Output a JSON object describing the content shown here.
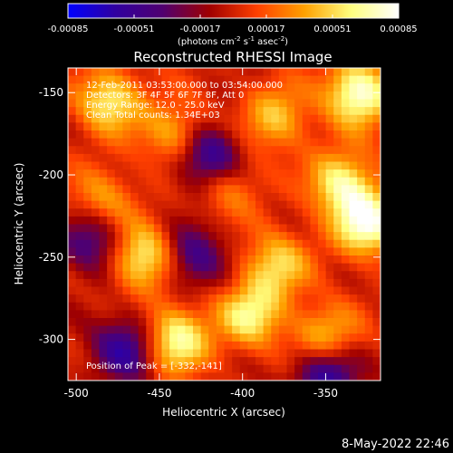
{
  "chart_data": {
    "type": "heatmap",
    "title": "Reconstructed RHESSI Image",
    "xlabel": "Heliocentric X (arcsec)",
    "ylabel": "Heliocentric Y (arcsec)",
    "xlim": [
      -505,
      -317
    ],
    "ylim": [
      -325,
      -135
    ],
    "x_ticks": [
      -500,
      -450,
      -400,
      -350
    ],
    "y_ticks": [
      -150,
      -200,
      -250,
      -300
    ],
    "colorbar": {
      "ticks": [
        "-0.00085",
        "-0.00051",
        "-0.00017",
        "0.00017",
        "0.00051",
        "0.00085"
      ],
      "range": [
        -0.00085,
        0.00085
      ],
      "label_parts": {
        "a": "(photons cm",
        "b": "-2",
        "c": " s",
        "d": "-1",
        "e": " asec",
        "f": "-2",
        "g": ")"
      },
      "stops": [
        "#0000ff",
        "#3000a0",
        "#500070",
        "#a00000",
        "#ff4000",
        "#ffa000",
        "#ffff80",
        "#ffffff"
      ]
    },
    "annotations": [
      "12-Feb-2011 03:53:00.000 to 03:54:00.000",
      "Detectors: 3F 4F 5F 6F 7F 8F, Att 0",
      "Energy Range: 12.0 - 25.0 keV",
      "Clean     Total counts: 1.34E+03"
    ],
    "peak_label": "Position of Peak = [-332,-141]",
    "peak": [
      -332,
      -141
    ],
    "bright_regions": [
      {
        "x": -330,
        "y": -150,
        "level": 0.95
      },
      {
        "x": -325,
        "y": -230,
        "level": 0.9
      },
      {
        "x": -340,
        "y": -205,
        "level": 0.75
      },
      {
        "x": -480,
        "y": -155,
        "level": 0.7
      },
      {
        "x": -460,
        "y": -250,
        "level": 0.8
      },
      {
        "x": -440,
        "y": -300,
        "level": 0.85
      },
      {
        "x": -395,
        "y": -285,
        "level": 0.7
      },
      {
        "x": -380,
        "y": -255,
        "level": 0.6
      },
      {
        "x": -350,
        "y": -300,
        "level": 0.65
      },
      {
        "x": -440,
        "y": -175,
        "level": 0.55
      },
      {
        "x": -380,
        "y": -165,
        "level": 0.55
      },
      {
        "x": -410,
        "y": -205,
        "level": 0.5
      },
      {
        "x": -485,
        "y": -215,
        "level": 0.45
      }
    ],
    "dark_regions": [
      {
        "x": -420,
        "y": -190,
        "level": -0.9
      },
      {
        "x": -350,
        "y": -320,
        "level": -0.8
      },
      {
        "x": -470,
        "y": -305,
        "level": -0.7
      },
      {
        "x": -430,
        "y": -250,
        "level": -0.6
      },
      {
        "x": -490,
        "y": -240,
        "level": -0.6
      }
    ]
  },
  "footer": {
    "date": "8-May-2022 22:46"
  }
}
